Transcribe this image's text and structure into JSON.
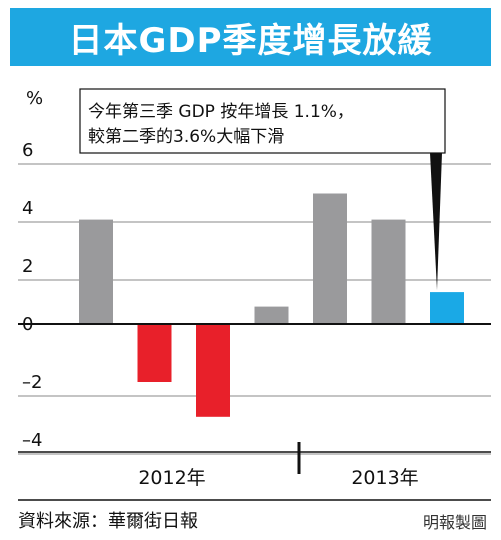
{
  "title": "日本GDP季度增長放緩",
  "chart_data": {
    "type": "bar",
    "unit_label": "%",
    "yticks": [
      6,
      4,
      2,
      0,
      -2,
      -4
    ],
    "ytick_labels": [
      "6",
      "4",
      "2",
      "0",
      "–2",
      "–4"
    ],
    "ylim": [
      -4.5,
      7
    ],
    "values": [
      3.6,
      -2.0,
      -3.2,
      0.6,
      4.5,
      3.6,
      1.1
    ],
    "bar_colors": [
      "#9a9a9c",
      "#e8202a",
      "#e8202a",
      "#9a9a9c",
      "#9a9a9c",
      "#9a9a9c",
      "#1aa9e6"
    ],
    "year_labels": [
      "2012年",
      "2013年"
    ],
    "annotation": {
      "line1": "今年第三季 GDP 按年增長 1.1%，",
      "line2": "較第二季的3.6%大幅下滑"
    }
  },
  "source": "資料來源：華爾街日報",
  "credit": "明報製圖"
}
